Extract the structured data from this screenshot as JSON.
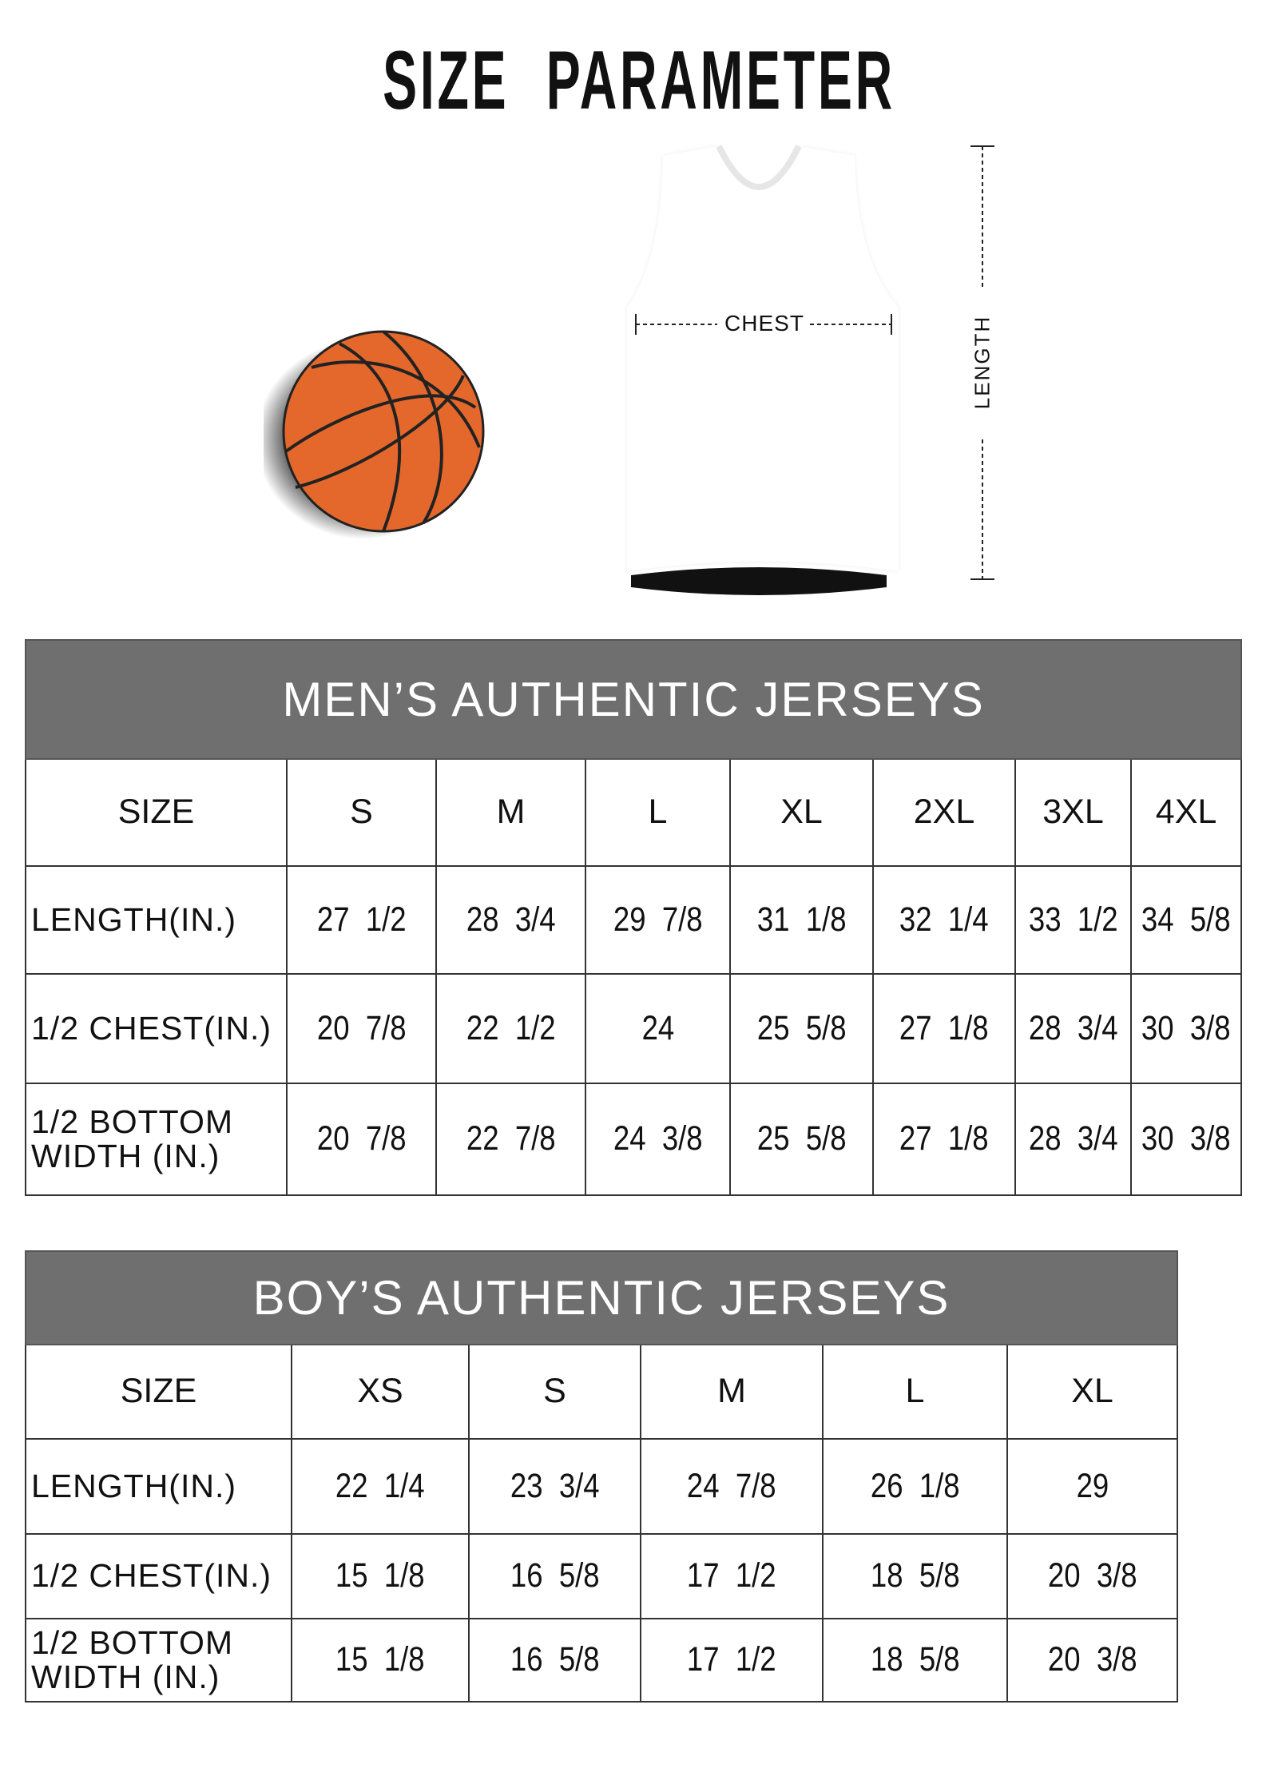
{
  "title": "SIZE PARAMETER",
  "diagram": {
    "chest_label": "CHEST",
    "length_label": "LENGTH",
    "ball_color": "#e4682b",
    "header_color": "#6f6f6f"
  },
  "mens": {
    "title": "MEN’S AUTHENTIC JERSEYS",
    "size_label": "SIZE",
    "sizes": [
      "S",
      "M",
      "L",
      "XL",
      "2XL",
      "3XL",
      "4XL"
    ],
    "rows": [
      {
        "label": "LENGTH(IN.)",
        "values": [
          "27  1/2",
          "28  3/4",
          "29  7/8",
          "31  1/8",
          "32  1/4",
          "33  1/2",
          "34  5/8"
        ]
      },
      {
        "label": "1/2 CHEST(IN.)",
        "values": [
          "20  7/8",
          "22  1/2",
          "24",
          "25  5/8",
          "27  1/8",
          "28  3/4",
          "30  3/8"
        ]
      },
      {
        "label": "1/2 BOTTOM WIDTH  (IN.)",
        "values": [
          "20  7/8",
          "22  7/8",
          "24  3/8",
          "25  5/8",
          "27  1/8",
          "28  3/4",
          "30  3/8"
        ]
      }
    ]
  },
  "boys": {
    "title": "BOY’S AUTHENTIC JERSEYS",
    "size_label": "SIZE",
    "sizes": [
      "XS",
      "S",
      "M",
      "L",
      "XL"
    ],
    "rows": [
      {
        "label": "LENGTH(IN.)",
        "values": [
          "22  1/4",
          "23  3/4",
          "24  7/8",
          "26  1/8",
          "29"
        ]
      },
      {
        "label": "1/2 CHEST(IN.)",
        "values": [
          "15  1/8",
          "16  5/8",
          "17  1/2",
          "18  5/8",
          "20  3/8"
        ]
      },
      {
        "label": "1/2 BOTTOM WIDTH  (IN.)",
        "values": [
          "15  1/8",
          "16  5/8",
          "17  1/2",
          "18  5/8",
          "20  3/8"
        ]
      }
    ]
  }
}
